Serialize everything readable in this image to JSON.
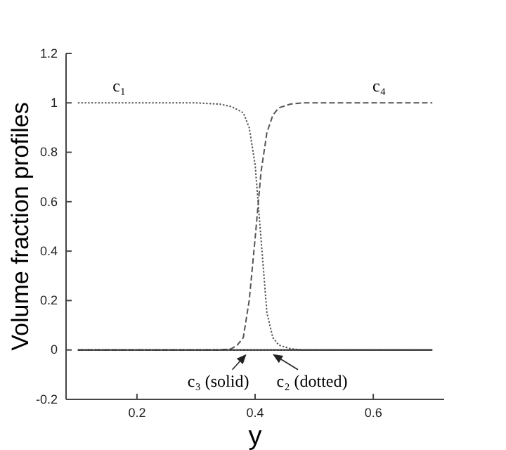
{
  "chart_data": {
    "type": "line",
    "xlabel": "y",
    "ylabel": "Volume fraction profiles",
    "xlim": [
      0.08,
      0.72
    ],
    "ylim": [
      -0.2,
      1.2
    ],
    "xticks": [
      0.2,
      0.4,
      0.6
    ],
    "yticks": [
      -0.2,
      0,
      0.2,
      0.4,
      0.6,
      0.8,
      1,
      1.2
    ],
    "grid": false,
    "series": [
      {
        "name": "c₁",
        "color": "#555555",
        "line_style": "dotted",
        "x": [
          0.1,
          0.17,
          0.3,
          0.34,
          0.36,
          0.38,
          0.39,
          0.4,
          0.41,
          0.42,
          0.43,
          0.44,
          0.46,
          0.48,
          0.55,
          0.7
        ],
        "values": [
          1,
          1,
          1,
          0.995,
          0.985,
          0.96,
          0.9,
          0.75,
          0.45,
          0.15,
          0.05,
          0.02,
          0.005,
          0,
          0,
          0
        ]
      },
      {
        "name": "c₄",
        "color": "#555555",
        "line_style": "dashed",
        "x": [
          0.1,
          0.3,
          0.34,
          0.36,
          0.37,
          0.38,
          0.39,
          0.4,
          0.41,
          0.42,
          0.43,
          0.44,
          0.46,
          0.48,
          0.61,
          0.7
        ],
        "values": [
          0,
          0,
          0,
          0.005,
          0.02,
          0.05,
          0.2,
          0.45,
          0.72,
          0.88,
          0.95,
          0.98,
          0.995,
          1,
          1,
          1
        ]
      },
      {
        "color": "#333333",
        "line_style": "solid",
        "x": [
          0.1,
          0.7
        ],
        "values": [
          0,
          0
        ]
      },
      {
        "color": "#333333",
        "line_style": "dotted",
        "x": [
          0.1,
          0.7
        ],
        "values": [
          0,
          0
        ]
      }
    ],
    "annotations": [
      {
        "text": "c₃ (solid)",
        "x": 0.39,
        "y": 0
      },
      {
        "text": "c₂ (dotted)",
        "x": 0.425,
        "y": 0
      }
    ]
  }
}
